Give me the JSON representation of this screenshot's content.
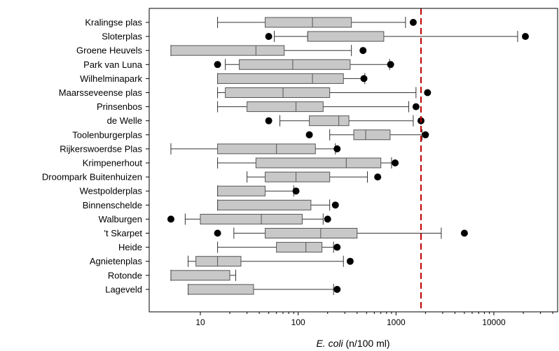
{
  "chart_data": {
    "type": "boxplot",
    "xscale": "log",
    "xlim": [
      4,
      45000
    ],
    "xticks": [
      {
        "value": 10,
        "label": "10"
      },
      {
        "value": 100,
        "label": "100"
      },
      {
        "value": 1000,
        "label": "1000"
      },
      {
        "value": 10000,
        "label": "10000"
      }
    ],
    "xlabel_italic": "E. coli",
    "xlabel_rest": " (n/100 ml)",
    "reference_line": {
      "value": 1800,
      "color": "#c00000",
      "style": "dashed"
    },
    "colors": {
      "box_fill": "#c8c8c8",
      "box_stroke": "#555555",
      "whisker": "#333333",
      "outlier": "#000000"
    },
    "categories": [
      {
        "name": "Kralingse plas",
        "wlo": 15,
        "q1": 46,
        "med": 140,
        "q3": 350,
        "whi": 1250,
        "outliers": [
          1500
        ]
      },
      {
        "name": "Sloterplas",
        "wlo": 57,
        "q1": 125,
        "med": 125,
        "q3": 750,
        "whi": 17500,
        "outliers": [
          50,
          21000
        ]
      },
      {
        "name": "Groene Heuvels",
        "wlo": 5,
        "q1": 5,
        "med": 37,
        "q3": 72,
        "whi": 350,
        "outliers": [
          460
        ]
      },
      {
        "name": "Park van Luna",
        "wlo": 18,
        "q1": 25,
        "med": 88,
        "q3": 340,
        "whi": 860,
        "outliers": [
          15,
          880
        ]
      },
      {
        "name": "Wilhelminapark",
        "wlo": 15,
        "q1": 15,
        "med": 140,
        "q3": 290,
        "whi": 480,
        "outliers": [
          470
        ]
      },
      {
        "name": "Maarsseveense plas",
        "wlo": 15,
        "q1": 18,
        "med": 70,
        "q3": 210,
        "whi": 1600,
        "outliers": [
          2100
        ]
      },
      {
        "name": "Prinsenbos",
        "wlo": 15,
        "q1": 30,
        "med": 95,
        "q3": 180,
        "whi": 1350,
        "outliers": [
          1600
        ]
      },
      {
        "name": "de Welle",
        "wlo": 65,
        "q1": 130,
        "med": 260,
        "q3": 330,
        "whi": 1500,
        "outliers": [
          50,
          1800
        ]
      },
      {
        "name": "Toolenburgerplas",
        "wlo": 210,
        "q1": 370,
        "med": 490,
        "q3": 870,
        "whi": 1850,
        "outliers": [
          130,
          2000
        ]
      },
      {
        "name": "Rijkerswoerdse Plas",
        "wlo": 5,
        "q1": 15,
        "med": 60,
        "q3": 150,
        "whi": 240,
        "outliers": [
          250
        ]
      },
      {
        "name": "Krimpenerhout",
        "wlo": 15,
        "q1": 37,
        "med": 310,
        "q3": 700,
        "whi": 900,
        "outliers": [
          980
        ]
      },
      {
        "name": "Droompark Buitenhuizen",
        "wlo": 30,
        "q1": 46,
        "med": 95,
        "q3": 210,
        "whi": 510,
        "outliers": [
          650
        ]
      },
      {
        "name": "Westpolderplas",
        "wlo": 15,
        "q1": 15,
        "med": 15,
        "q3": 46,
        "whi": 90,
        "outliers": [
          95
        ]
      },
      {
        "name": "Binnenschelde",
        "wlo": 15,
        "q1": 15,
        "med": 15,
        "q3": 135,
        "whi": 210,
        "outliers": [
          240
        ]
      },
      {
        "name": "Walburgen",
        "wlo": 7,
        "q1": 10,
        "med": 42,
        "q3": 110,
        "whi": 180,
        "outliers": [
          5,
          200
        ]
      },
      {
        "name": "'t Skarpet",
        "wlo": 22,
        "q1": 46,
        "med": 170,
        "q3": 400,
        "whi": 2900,
        "outliers": [
          15,
          5000
        ]
      },
      {
        "name": "Heide",
        "wlo": 15,
        "q1": 60,
        "med": 120,
        "q3": 175,
        "whi": 230,
        "outliers": [
          250
        ]
      },
      {
        "name": "Agnietenplas",
        "wlo": 7.5,
        "q1": 9,
        "med": 15,
        "q3": 26,
        "whi": 290,
        "outliers": [
          340
        ]
      },
      {
        "name": "Rotonde",
        "wlo": 5,
        "q1": 5,
        "med": 5,
        "q3": 20,
        "whi": 23,
        "outliers": []
      },
      {
        "name": "Lageveld",
        "wlo": 7.5,
        "q1": 7.5,
        "med": 7.5,
        "q3": 35,
        "whi": 230,
        "outliers": [
          250
        ]
      }
    ]
  }
}
